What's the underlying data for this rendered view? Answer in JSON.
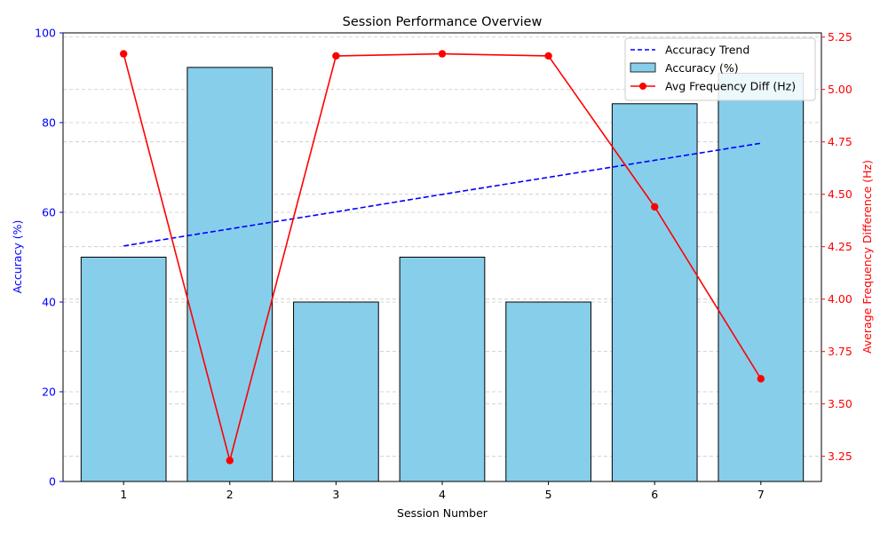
{
  "chart_data": {
    "type": "bar",
    "title": "Session Performance Overview",
    "xlabel": "Session Number",
    "ylabel_left": "Accuracy (%)",
    "ylabel_right": "Average Frequency Difference (Hz)",
    "categories": [
      "1",
      "2",
      "3",
      "4",
      "5",
      "6",
      "7"
    ],
    "x": [
      1,
      2,
      3,
      4,
      5,
      6,
      7
    ],
    "ylim_left": [
      0,
      100
    ],
    "yticks_left": [
      "0",
      "20",
      "40",
      "60",
      "80",
      "100"
    ],
    "ylim_right": [
      3.13,
      5.27
    ],
    "yticks_right": [
      "3.25",
      "3.50",
      "3.75",
      "4.00",
      "4.25",
      "4.50",
      "4.75",
      "5.00",
      "5.25"
    ],
    "grid": "horizontal, dashed",
    "legend_position": "top-right",
    "series": [
      {
        "name": "Accuracy (%)",
        "type": "bar",
        "axis": "left",
        "color": "#87ceeb",
        "values": [
          50,
          92.3,
          40,
          50,
          40,
          84.2,
          91
        ]
      },
      {
        "name": "Avg Frequency Diff (Hz)",
        "type": "line",
        "axis": "right",
        "color": "#ff0000",
        "marker": "circle",
        "values": [
          5.17,
          3.23,
          5.16,
          5.17,
          5.16,
          4.44,
          3.62
        ]
      },
      {
        "name": "Accuracy Trend",
        "type": "line",
        "axis": "left",
        "color": "#0000ff",
        "style": "dashed",
        "values": [
          52.5,
          56.3,
          60.1,
          64.0,
          67.8,
          71.6,
          75.4
        ]
      }
    ],
    "legend": [
      "Accuracy Trend",
      "Accuracy (%)",
      "Avg Frequency Diff (Hz)"
    ]
  }
}
